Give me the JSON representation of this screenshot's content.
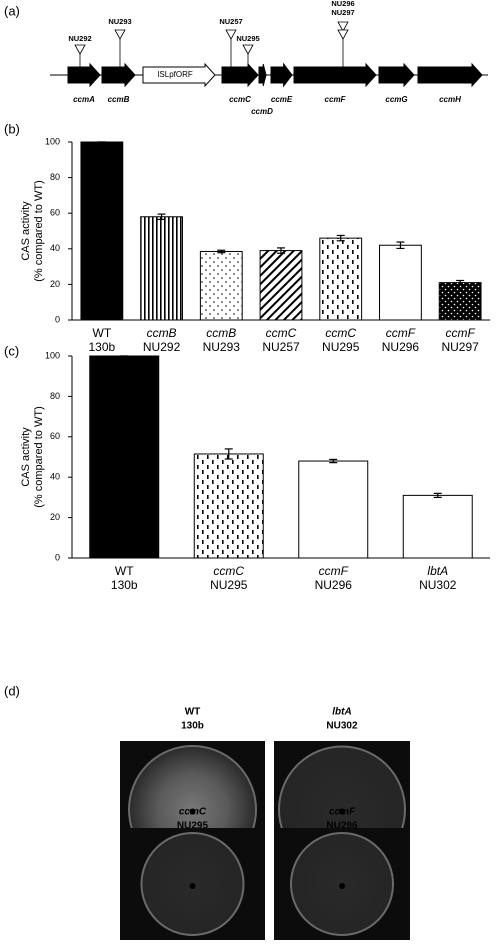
{
  "gene_map": {
    "label": "(a)",
    "genes": [
      "ccmA",
      "ccmB",
      "ISLpfORF",
      "ccmC",
      "ccmD",
      "ccmE",
      "ccmF",
      "ccmG",
      "ccmH"
    ],
    "insertions": [
      "NU292",
      "NU293",
      "NU257",
      "NU295",
      "NU296",
      "NU297"
    ]
  },
  "chart_data": [
    {
      "type": "bar",
      "panel_label": "(b)",
      "y_label": [
        "CAS activity",
        "(% compared to WT)"
      ],
      "genes": [
        "WT",
        "ccmB",
        "ccmB",
        "ccmC",
        "ccmC",
        "ccmF",
        "ccmF"
      ],
      "categories": [
        "130b",
        "NU292",
        "NU293",
        "NU257",
        "NU295",
        "NU296",
        "NU297"
      ],
      "values": [
        100,
        58,
        38.5,
        39,
        46,
        42,
        21
      ],
      "errors": [
        0,
        1.5,
        0.7,
        1.5,
        1.5,
        1.8,
        1.2
      ],
      "patterns": [
        "solid",
        "vertical-stripes",
        "dots",
        "diagonal",
        "dashes",
        "none",
        "white-dots-on-black"
      ],
      "ylim": [
        0,
        100
      ],
      "yticks": [
        0,
        20,
        40,
        60,
        80,
        100
      ]
    },
    {
      "type": "bar",
      "panel_label": "(c)",
      "y_label": [
        "CAS activity",
        "(% compared to WT)"
      ],
      "genes": [
        "WT",
        "ccmC",
        "ccmF",
        "lbtA"
      ],
      "categories": [
        "130b",
        "NU295",
        "NU296",
        "NU302"
      ],
      "values": [
        100,
        51.5,
        48,
        31
      ],
      "errors": [
        0,
        2.5,
        0.8,
        1
      ],
      "patterns": [
        "solid",
        "dashes",
        "none",
        "none"
      ],
      "ylim": [
        0,
        100
      ],
      "yticks": [
        0,
        20,
        40,
        60,
        80,
        100
      ]
    }
  ],
  "plates": {
    "label": "(d)",
    "items": [
      {
        "gene": "WT",
        "strain": "130b"
      },
      {
        "gene": "lbtA",
        "strain": "NU302"
      },
      {
        "gene": "ccmC",
        "strain": "NU295"
      },
      {
        "gene": "ccmF",
        "strain": "NU296"
      }
    ]
  }
}
